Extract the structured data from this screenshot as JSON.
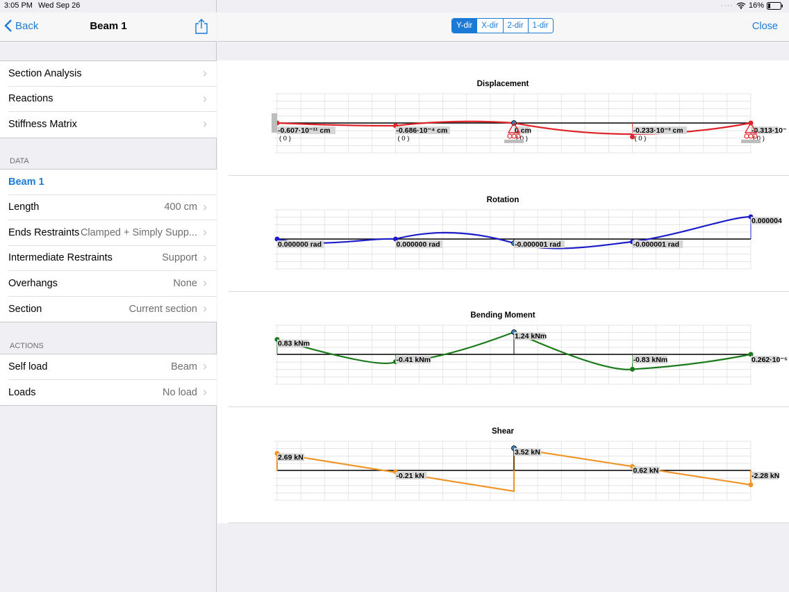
{
  "status": {
    "time": "3:05 PM",
    "date": "Wed Sep 26",
    "battery": "16%"
  },
  "nav": {
    "back": "Back",
    "title": "Beam 1",
    "close": "Close"
  },
  "segments": [
    {
      "label": "Y-dir",
      "active": true
    },
    {
      "label": "X-dir",
      "active": false
    },
    {
      "label": "2-dir",
      "active": false
    },
    {
      "label": "1-dir",
      "active": false
    }
  ],
  "menu": [
    {
      "label": "Section Analysis"
    },
    {
      "label": "Reactions"
    },
    {
      "label": "Stiffness Matrix"
    }
  ],
  "data_header": "DATA",
  "data_rows": [
    {
      "label": "Beam 1",
      "value": ""
    },
    {
      "label": "Length",
      "value": "400 cm"
    },
    {
      "label": "Ends Restraints",
      "value": "Clamped + Simply Supp..."
    },
    {
      "label": "Intermediate Restraints",
      "value": "Support"
    },
    {
      "label": "Overhangs",
      "value": "None"
    },
    {
      "label": "Section",
      "value": "Current section"
    }
  ],
  "actions_header": "ACTIONS",
  "action_rows": [
    {
      "label": "Self load",
      "value": "Beam"
    },
    {
      "label": "Loads",
      "value": "No load"
    }
  ],
  "chart_data": [
    {
      "type": "line",
      "title": "Displacement",
      "color": "#e0242b",
      "x": [
        0,
        100,
        200,
        300,
        400
      ],
      "labels": [
        "-0.607·10⁻¹¹ cm",
        "-0.686·10⁻⁴ cm",
        "0 cm",
        "-0.233·10⁻³ cm",
        "-0.313·10⁻"
      ],
      "sublabels": [
        "( 0 )",
        "( 0 )",
        "( 0 )",
        "( 0 )",
        "( 0 )"
      ],
      "values": [
        -0.0,
        -6.86e-05,
        0,
        -0.000233,
        -0.0
      ],
      "curve": [
        0,
        -0.35,
        -0.1,
        0,
        -0.95,
        -0.1,
        0
      ]
    },
    {
      "type": "line",
      "title": "Rotation",
      "color": "#1c1cc8",
      "x": [
        0,
        100,
        200,
        300,
        400
      ],
      "labels": [
        "0.000000 rad",
        "0.000000 rad",
        "-0.000001 rad",
        "-0.000001 rad",
        "0.000004"
      ],
      "values": [
        0.0,
        0.0,
        -1e-06,
        -1e-06,
        4e-06
      ]
    },
    {
      "type": "line",
      "title": "Bending Moment",
      "color": "#1a7a1a",
      "x": [
        0,
        100,
        200,
        300,
        400
      ],
      "labels": [
        "0.83 kNm",
        "-0.41 kNm",
        "1.24 kNm",
        "-0.83 kNm",
        "0.262·10⁻⁵"
      ],
      "values": [
        0.83,
        -0.41,
        1.24,
        -0.83,
        0.0
      ]
    },
    {
      "type": "line",
      "title": "Shear",
      "color": "#f0952a",
      "x": [
        0,
        100,
        200,
        300,
        400
      ],
      "labels": [
        "2.69 kN",
        "-0.21 kN",
        "3.52 kN",
        "0.62 kN",
        "-2.28 kN"
      ],
      "values": [
        2.69,
        -0.21,
        3.52,
        0.62,
        -2.28
      ]
    }
  ]
}
